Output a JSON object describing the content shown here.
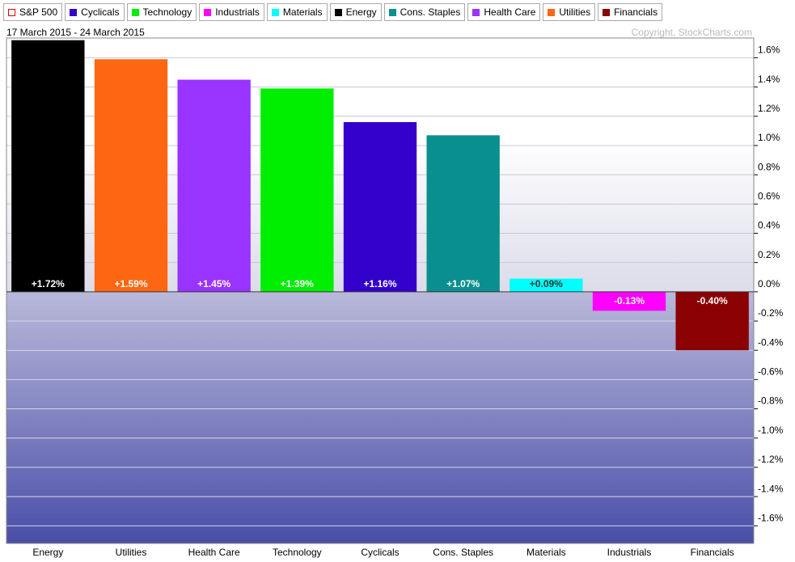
{
  "chart_data": {
    "type": "bar",
    "subtitle": "17 March 2015 - 24 March 2015",
    "copyright": "Copyright, StockCharts.com",
    "legend": [
      {
        "name": "S&P 500",
        "color": "#e00000",
        "hollow": true
      },
      {
        "name": "Cyclicals",
        "color": "#3300cc"
      },
      {
        "name": "Technology",
        "color": "#00ee00"
      },
      {
        "name": "Industrials",
        "color": "#ff00ff"
      },
      {
        "name": "Materials",
        "color": "#00ffff"
      },
      {
        "name": "Energy",
        "color": "#000000"
      },
      {
        "name": "Cons. Staples",
        "color": "#0a8f8f"
      },
      {
        "name": "Health Care",
        "color": "#9933ff"
      },
      {
        "name": "Utilities",
        "color": "#ff6611"
      },
      {
        "name": "Financials",
        "color": "#8b0000"
      }
    ],
    "categories": [
      "Energy",
      "Utilities",
      "Health Care",
      "Technology",
      "Cyclicals",
      "Cons. Staples",
      "Materials",
      "Industrials",
      "Financials"
    ],
    "values": [
      1.72,
      1.59,
      1.45,
      1.39,
      1.16,
      1.07,
      0.09,
      -0.13,
      -0.4
    ],
    "value_labels": [
      "+1.72%",
      "+1.59%",
      "+1.45%",
      "+1.39%",
      "+1.16%",
      "+1.07%",
      "+0.09%",
      "-0.13%",
      "-0.40%"
    ],
    "colors": [
      "#000000",
      "#ff6611",
      "#9933ff",
      "#00ee00",
      "#3300cc",
      "#0a8f8f",
      "#00ffff",
      "#ff00ff",
      "#8b0000"
    ],
    "ylim": [
      -1.72,
      1.735
    ],
    "yticks": [
      {
        "value": -1.6,
        "label": "-1.6%"
      },
      {
        "value": -1.4,
        "label": "-1.4%"
      },
      {
        "value": -1.2,
        "label": "-1.2%"
      },
      {
        "value": -1.0,
        "label": "-1.0%"
      },
      {
        "value": -0.8,
        "label": "-0.8%"
      },
      {
        "value": -0.6,
        "label": "-0.6%"
      },
      {
        "value": -0.4,
        "label": "-0.4%"
      },
      {
        "value": -0.2,
        "label": "-0.2%"
      },
      {
        "value": 0,
        "label": "0.0%"
      },
      {
        "value": 0.2,
        "label": "0.2%"
      },
      {
        "value": 0.4,
        "label": "0.4%"
      },
      {
        "value": 0.6,
        "label": "0.6%"
      },
      {
        "value": 0.8,
        "label": "0.8%"
      },
      {
        "value": 1.0,
        "label": "1.0%"
      },
      {
        "value": 1.2,
        "label": "1.2%"
      },
      {
        "value": 1.4,
        "label": "1.4%"
      },
      {
        "value": 1.6,
        "label": "1.6%"
      }
    ],
    "grid": true
  }
}
